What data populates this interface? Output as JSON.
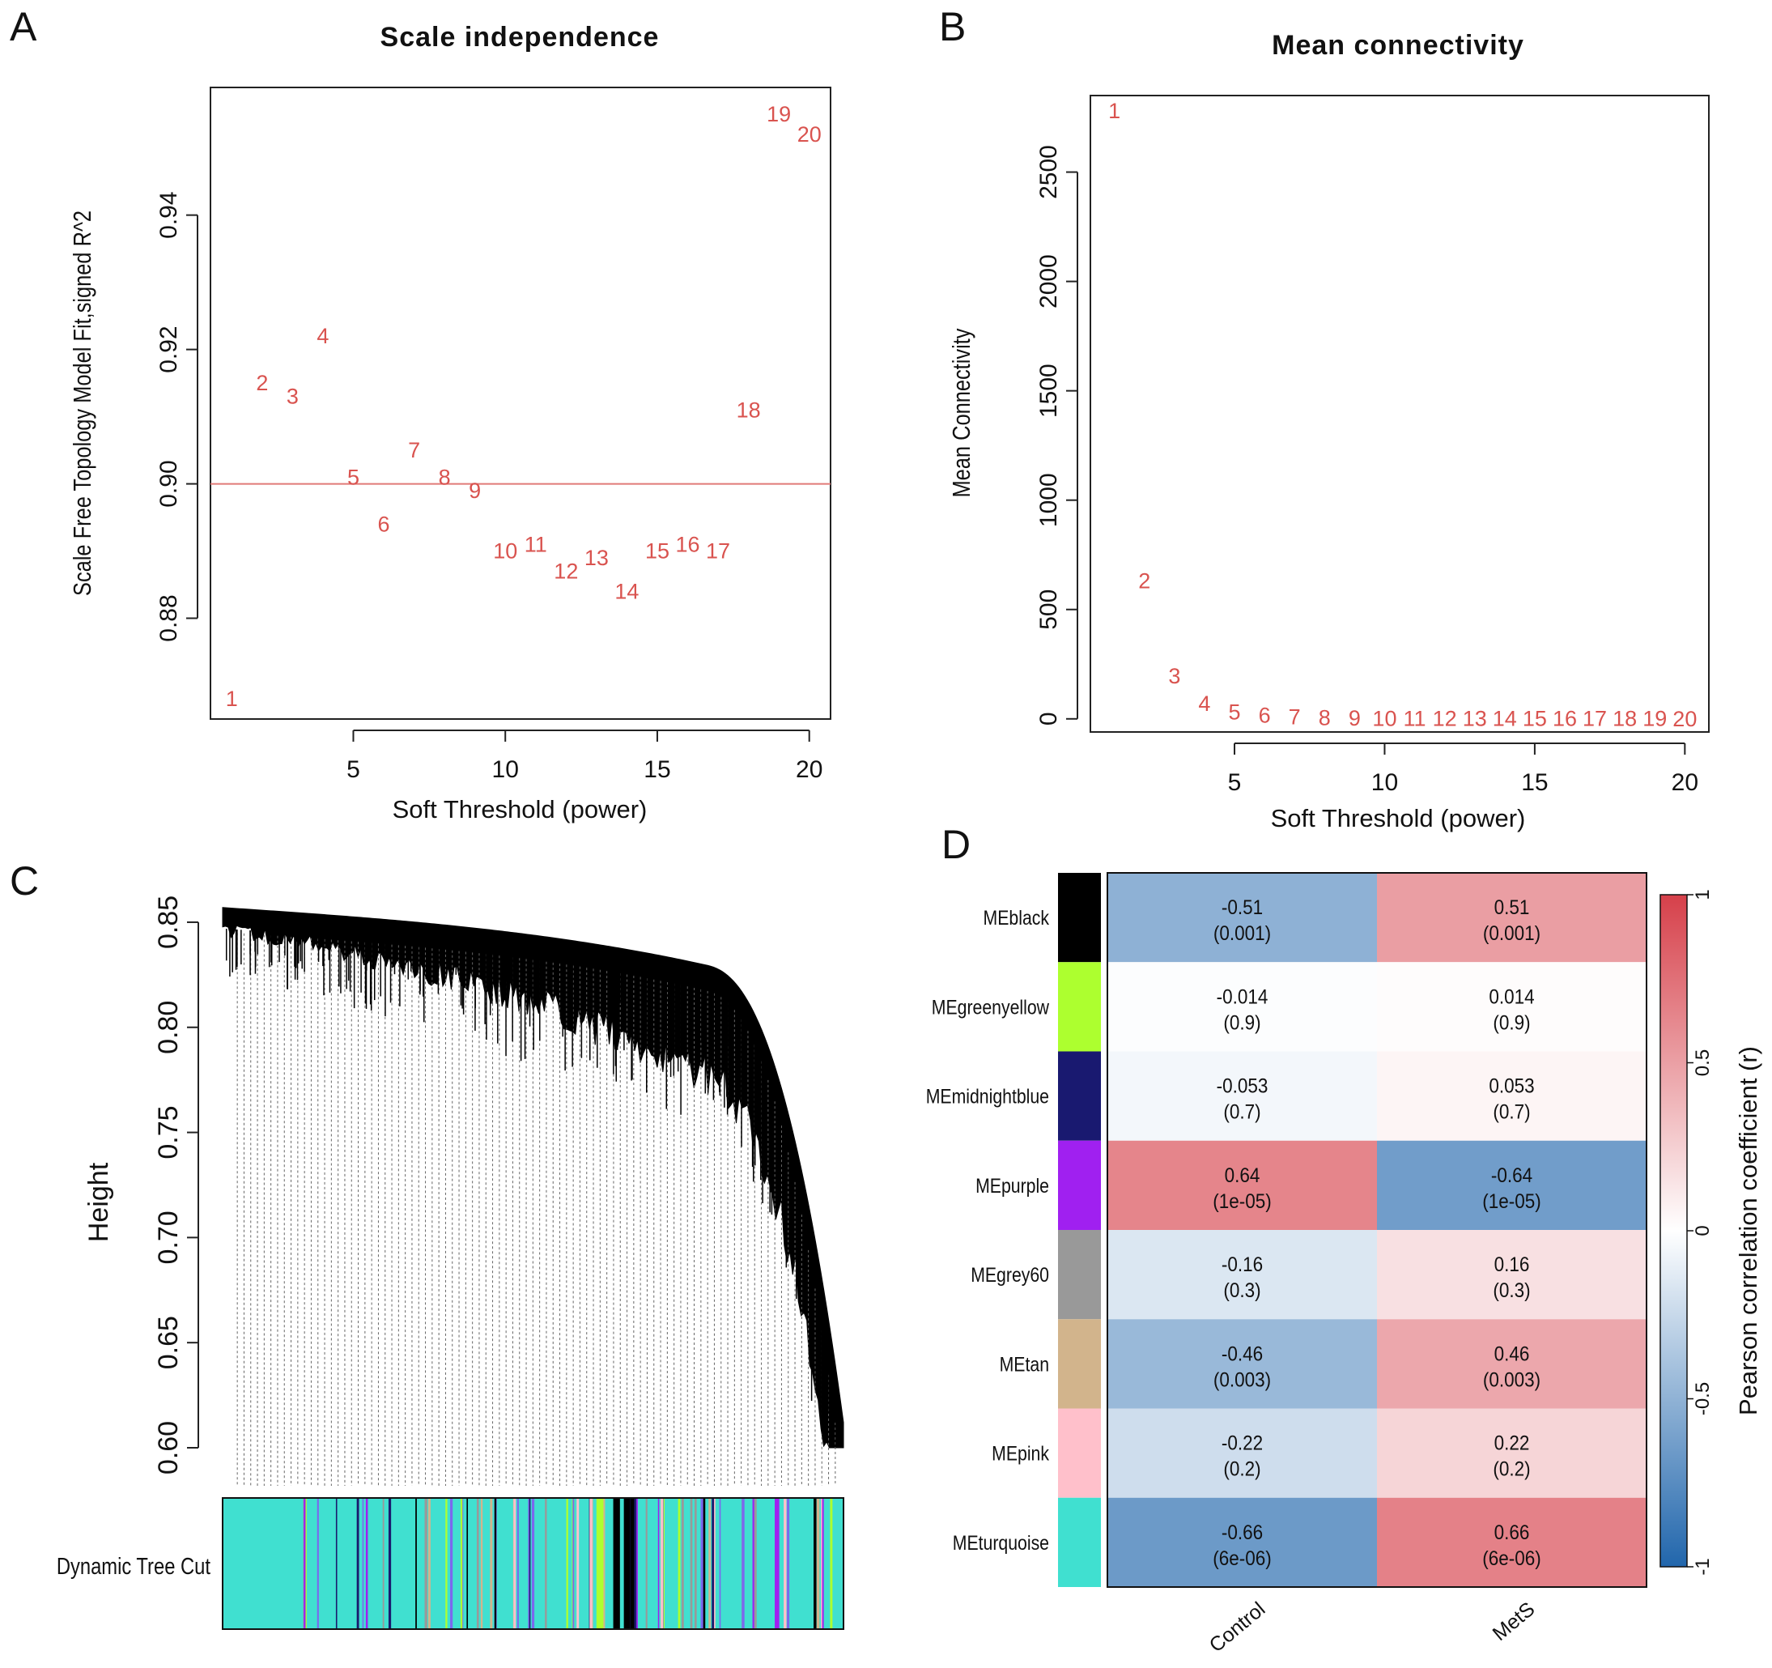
{
  "panels": {
    "A": "A",
    "B": "B",
    "C": "C",
    "D": "D"
  },
  "chart_data": [
    {
      "id": "A",
      "type": "scatter",
      "title": "Scale independence",
      "xlabel": "Soft Threshold (power)",
      "ylabel": "Scale Free Topology Model Fit,signed R^2",
      "xlim": [
        0.3,
        20.7
      ],
      "ylim": [
        0.865,
        0.959
      ],
      "xticks": [
        5,
        10,
        15,
        20
      ],
      "yticks": [
        0.88,
        0.9,
        0.92,
        0.94
      ],
      "ytick_labels": [
        "0.88",
        "0.90",
        "0.92",
        "0.94"
      ],
      "hline": 0.9,
      "marker_color": "#d9534f",
      "x": [
        1,
        2,
        3,
        4,
        5,
        6,
        7,
        8,
        9,
        10,
        11,
        12,
        13,
        14,
        15,
        16,
        17,
        18,
        19,
        20
      ],
      "y": [
        0.868,
        0.915,
        0.913,
        0.922,
        0.901,
        0.894,
        0.905,
        0.901,
        0.899,
        0.89,
        0.891,
        0.887,
        0.889,
        0.884,
        0.89,
        0.891,
        0.89,
        0.911,
        0.955,
        0.952
      ],
      "labels": [
        "1",
        "2",
        "3",
        "4",
        "5",
        "6",
        "7",
        "8",
        "9",
        "10",
        "11",
        "12",
        "13",
        "14",
        "15",
        "16",
        "17",
        "18",
        "19",
        "20"
      ]
    },
    {
      "id": "B",
      "type": "scatter",
      "title": "Mean connectivity",
      "xlabel": "Soft Threshold (power)",
      "ylabel": "Mean Connectivity",
      "xlim": [
        0.2,
        20.8
      ],
      "ylim": [
        -60,
        2850
      ],
      "xticks": [
        5,
        10,
        15,
        20
      ],
      "yticks": [
        0,
        500,
        1000,
        1500,
        2000,
        2500
      ],
      "marker_color": "#d9534f",
      "x": [
        1,
        2,
        3,
        4,
        5,
        6,
        7,
        8,
        9,
        10,
        11,
        12,
        13,
        14,
        15,
        16,
        17,
        18,
        19,
        20
      ],
      "y": [
        2780,
        630,
        195,
        70,
        30,
        15,
        8,
        5,
        3,
        2,
        1.5,
        1,
        0.8,
        0.6,
        0.5,
        0.4,
        0.3,
        0.25,
        0.2,
        0.15
      ],
      "labels": [
        "1",
        "2",
        "3",
        "4",
        "5",
        "6",
        "7",
        "8",
        "9",
        "10",
        "11",
        "12",
        "13",
        "14",
        "15",
        "16",
        "17",
        "18",
        "19",
        "20"
      ]
    },
    {
      "id": "C",
      "type": "dendrogram",
      "ylabel": "Height",
      "ylim": [
        0.6,
        0.865
      ],
      "yticks": [
        0.6,
        0.65,
        0.7,
        0.75,
        0.8,
        0.85
      ],
      "ytick_labels": [
        "0.60",
        "0.65",
        "0.70",
        "0.75",
        "0.80",
        "0.85"
      ],
      "color_bar_label": "Dynamic Tree Cut",
      "module_colors": [
        "#40e0d0",
        "#7b68ee",
        "#1a1a6e",
        "#000000",
        "#a020f0",
        "#adff2f",
        "#d2b48c",
        "#ffc0cb",
        "#999999"
      ]
    },
    {
      "id": "D",
      "type": "heatmap",
      "rows": [
        "MEblack",
        "MEgreenyellow",
        "MEmidnightblue",
        "MEpurple",
        "MEgrey60",
        "MEtan",
        "MEpink",
        "MEturquoise"
      ],
      "row_colors": [
        "#000000",
        "#adff2f",
        "#191970",
        "#a020f0",
        "#999999",
        "#d2b48c",
        "#ffc0cb",
        "#40e0d0"
      ],
      "columns": [
        "Control",
        "MetS"
      ],
      "values": [
        [
          -0.51,
          0.51
        ],
        [
          -0.014,
          0.014
        ],
        [
          -0.053,
          0.053
        ],
        [
          0.64,
          -0.64
        ],
        [
          -0.16,
          0.16
        ],
        [
          -0.46,
          0.46
        ],
        [
          -0.22,
          0.22
        ],
        [
          -0.66,
          0.66
        ]
      ],
      "value_labels": [
        [
          "-0.51",
          "0.51"
        ],
        [
          "-0.014",
          "0.014"
        ],
        [
          "-0.053",
          "0.053"
        ],
        [
          "0.64",
          "-0.64"
        ],
        [
          "-0.16",
          "0.16"
        ],
        [
          "-0.46",
          "0.46"
        ],
        [
          "-0.22",
          "0.22"
        ],
        [
          "-0.66",
          "0.66"
        ]
      ],
      "pvalues": [
        [
          "(0.001)",
          "(0.001)"
        ],
        [
          "(0.9)",
          "(0.9)"
        ],
        [
          "(0.7)",
          "(0.7)"
        ],
        [
          "(1e-05)",
          "(1e-05)"
        ],
        [
          "(0.3)",
          "(0.3)"
        ],
        [
          "(0.003)",
          "(0.003)"
        ],
        [
          "(0.2)",
          "(0.2)"
        ],
        [
          "(6e-06)",
          "(6e-06)"
        ]
      ],
      "colorbar_label": "Pearson correlation coefficient (r)",
      "colorbar_ticks": [
        -1,
        -0.5,
        0,
        0.5,
        1
      ],
      "colorbar_tick_labels": [
        "-1",
        "-0.5",
        "0",
        "0.5",
        "1"
      ],
      "vlim": [
        -1,
        1
      ],
      "colormap": [
        "#2166ac",
        "#ffffff",
        "#d6404a"
      ]
    }
  ]
}
